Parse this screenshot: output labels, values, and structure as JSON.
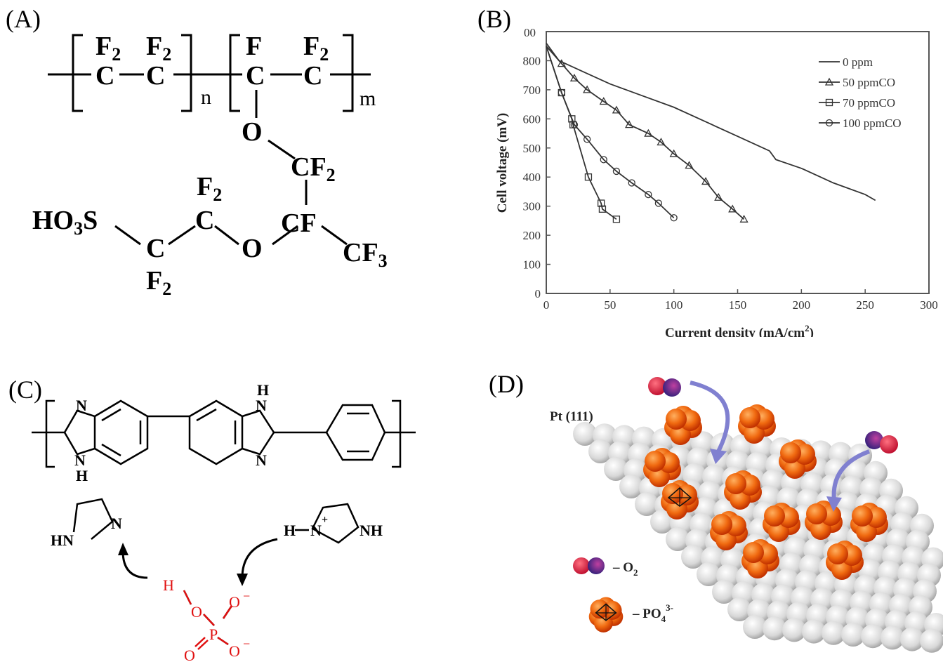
{
  "panels": {
    "a": {
      "label": "(A)",
      "subscripts": {
        "n": "n",
        "m": "m"
      },
      "atoms": {
        "f2": "F",
        "sub2": "2",
        "c": "C",
        "f": "F",
        "o": "O",
        "cf": "CF",
        "cf3_cf": "CF",
        "sub3": "3",
        "ho": "HO",
        "s": "S"
      }
    },
    "b": {
      "label": "(B)"
    },
    "c": {
      "label": "(C)",
      "atoms": {
        "n": "N",
        "h": "H",
        "hn": "HN",
        "nh": "NH",
        "plus": "+",
        "p": "P",
        "o": "O",
        "minus": "−"
      }
    },
    "d": {
      "label": "(D)",
      "surface_label": "Pt (111)",
      "legend": [
        {
          "name": "– O",
          "sub": "2"
        },
        {
          "name": "– PO",
          "sub": "4",
          "sup": "3-"
        }
      ],
      "colors": {
        "o2_red": "#e0203a",
        "o2_blue": "#3a2a8c",
        "po4_orange": "#f06a10",
        "arrow": "#8080d0",
        "pt_gray": "#dcdcdc"
      }
    }
  },
  "chart_data": {
    "type": "line",
    "xlabel": "Current density (mA/cm",
    "xlabel_sup": "2",
    "xlabel_end": ")",
    "ylabel": "Cell voltage (mV)",
    "xlim": [
      0,
      300
    ],
    "ylim": [
      0,
      900
    ],
    "x_ticks": [
      0,
      50,
      100,
      150,
      200,
      250,
      300
    ],
    "y_ticks": [
      0,
      100,
      200,
      300,
      400,
      500,
      600,
      700,
      800
    ],
    "y_top_tick_label": "00",
    "legend_position": "top-right",
    "series": [
      {
        "name": "0 ppm",
        "marker": "none",
        "x": [
          0,
          10,
          30,
          50,
          75,
          100,
          125,
          150,
          175,
          180,
          200,
          225,
          250,
          258
        ],
        "y": [
          860,
          800,
          760,
          720,
          680,
          640,
          590,
          540,
          490,
          460,
          430,
          380,
          340,
          320
        ]
      },
      {
        "name": "50 ppmCO",
        "marker": "triangle",
        "x": [
          0,
          12,
          22,
          32,
          45,
          55,
          65,
          80,
          90,
          100,
          112,
          125,
          135,
          146,
          155
        ],
        "y": [
          850,
          790,
          740,
          700,
          660,
          630,
          580,
          550,
          520,
          480,
          440,
          385,
          330,
          290,
          255
        ]
      },
      {
        "name": "70 ppmCO",
        "marker": "square",
        "x": [
          0,
          12,
          20,
          21,
          33,
          43,
          44,
          55
        ],
        "y": [
          850,
          690,
          600,
          580,
          400,
          310,
          290,
          255
        ]
      },
      {
        "name": "100 ppmCO",
        "marker": "circle",
        "x": [
          0,
          12,
          22,
          32,
          45,
          55,
          67,
          80,
          88,
          100
        ],
        "y": [
          850,
          690,
          580,
          530,
          460,
          420,
          380,
          340,
          310,
          260
        ]
      }
    ]
  }
}
